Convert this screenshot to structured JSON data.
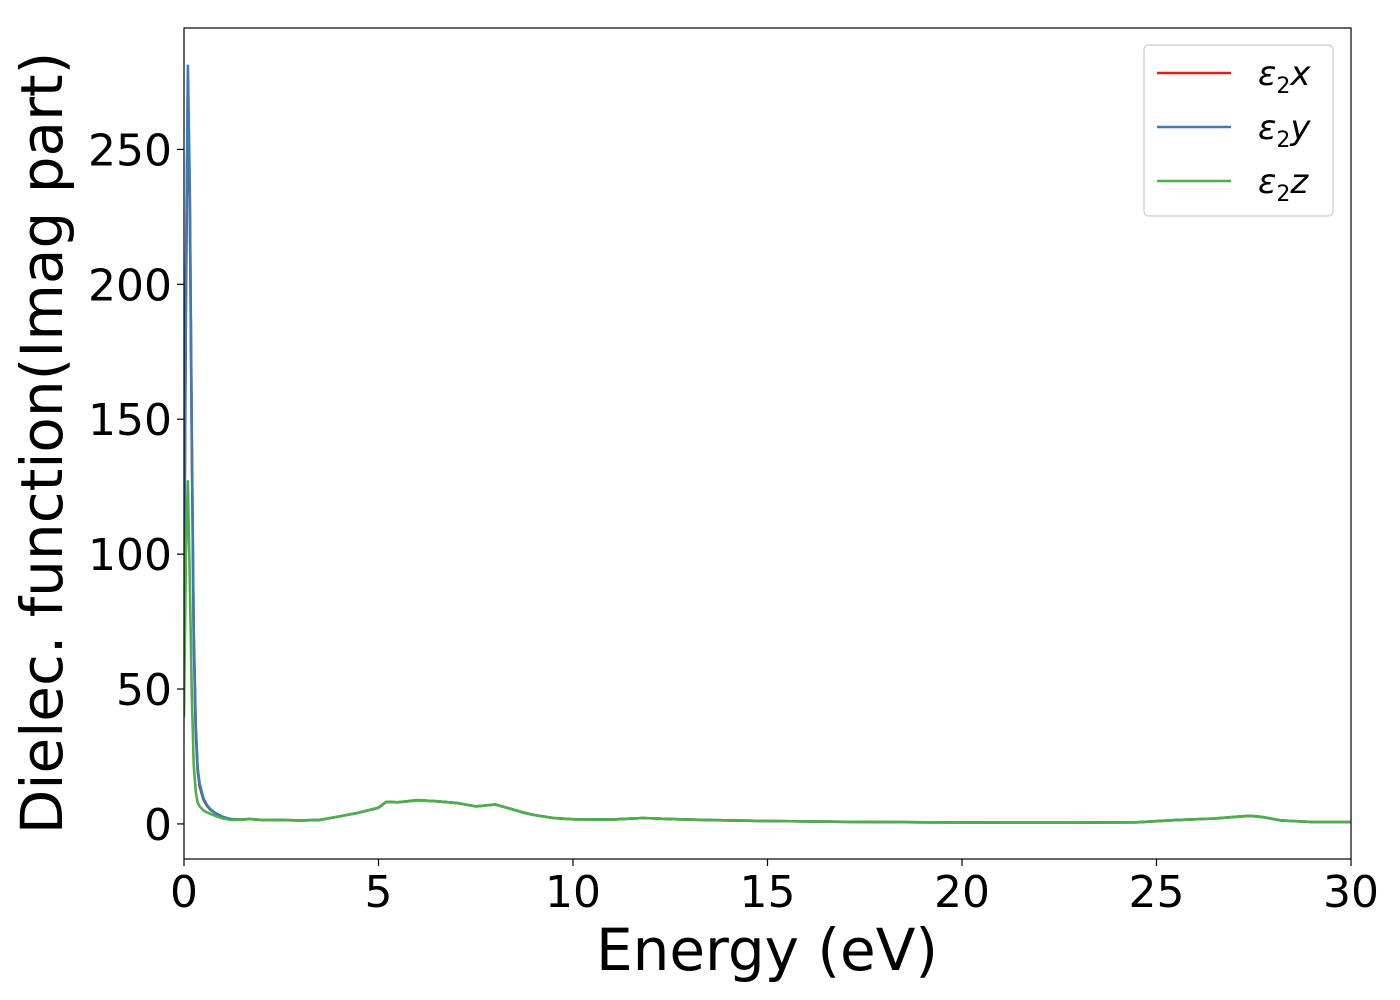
{
  "chart_data": {
    "type": "line",
    "xlabel": "Energy (eV)",
    "ylabel": "Dielec. function(Imag part)",
    "xlim": [
      0,
      30
    ],
    "ylim": [
      -13,
      295
    ],
    "xticks": [
      0,
      5,
      10,
      15,
      20,
      25,
      30
    ],
    "yticks": [
      0,
      50,
      100,
      150,
      200,
      250
    ],
    "grid": false,
    "legend": "top-right",
    "colors": {
      "x": "#e41a1c",
      "y": "#377eb8",
      "z": "#4daf4a"
    },
    "series": [
      {
        "name": "ε2x",
        "sym": "ε",
        "sub": "2",
        "var": "x",
        "color": "#e41a1c",
        "x": [
          0.0,
          0.05,
          0.1,
          0.15,
          0.2,
          0.25,
          0.3,
          0.35,
          0.4,
          0.5,
          0.6,
          0.7,
          0.8,
          1.0,
          1.2,
          1.4,
          1.7,
          2.0,
          2.5,
          3.0,
          3.5,
          4.0,
          4.5,
          5.0,
          5.2,
          5.5,
          6.0,
          6.5,
          7.0,
          7.5,
          8.0,
          8.3,
          8.7,
          9.0,
          9.5,
          10.0,
          11.0,
          11.8,
          12.5,
          13.5,
          15.0,
          17.0,
          19.0,
          21.0,
          23.0,
          24.5,
          25.5,
          26.5,
          27.0,
          27.4,
          27.7,
          28.2,
          29.0,
          30.0
        ],
        "y": [
          75,
          190,
          275,
          230,
          140,
          70,
          35,
          20,
          14,
          9,
          6.5,
          5,
          4,
          2.5,
          1.8,
          1.6,
          1.8,
          1.5,
          1.4,
          1.3,
          1.5,
          2.8,
          4.2,
          6.0,
          8.2,
          8.0,
          8.8,
          8.4,
          7.8,
          6.5,
          7.2,
          6.0,
          4.3,
          3.3,
          2.2,
          1.7,
          1.6,
          2.2,
          1.8,
          1.4,
          1.1,
          0.8,
          0.6,
          0.5,
          0.5,
          0.6,
          1.4,
          2.0,
          2.6,
          3.0,
          2.6,
          1.3,
          0.7,
          0.7
        ]
      },
      {
        "name": "ε2y",
        "sym": "ε",
        "sub": "2",
        "var": "y",
        "color": "#377eb8",
        "x": [
          0.0,
          0.05,
          0.1,
          0.15,
          0.2,
          0.25,
          0.3,
          0.35,
          0.4,
          0.5,
          0.6,
          0.7,
          0.8,
          1.0,
          1.2,
          1.4,
          1.7,
          2.0,
          2.5,
          3.0,
          3.5,
          4.0,
          4.5,
          5.0,
          5.2,
          5.5,
          6.0,
          6.5,
          7.0,
          7.5,
          8.0,
          8.3,
          8.7,
          9.0,
          9.5,
          10.0,
          11.0,
          11.8,
          12.5,
          13.5,
          15.0,
          17.0,
          19.0,
          21.0,
          23.0,
          24.5,
          25.5,
          26.5,
          27.0,
          27.4,
          27.7,
          28.2,
          29.0,
          30.0
        ],
        "y": [
          80,
          200,
          281,
          235,
          145,
          72,
          37,
          21,
          15,
          9.5,
          6.8,
          5.2,
          4.1,
          2.6,
          1.8,
          1.6,
          1.8,
          1.5,
          1.4,
          1.3,
          1.5,
          2.8,
          4.2,
          6.0,
          8.2,
          8.0,
          8.8,
          8.4,
          7.8,
          6.5,
          7.2,
          6.0,
          4.3,
          3.3,
          2.2,
          1.7,
          1.6,
          2.2,
          1.8,
          1.4,
          1.1,
          0.8,
          0.6,
          0.5,
          0.5,
          0.6,
          1.4,
          2.0,
          2.6,
          3.0,
          2.6,
          1.3,
          0.7,
          0.7
        ]
      },
      {
        "name": "ε2z",
        "sym": "ε",
        "sub": "2",
        "var": "z",
        "color": "#4daf4a",
        "x": [
          0.0,
          0.05,
          0.1,
          0.15,
          0.2,
          0.25,
          0.3,
          0.35,
          0.4,
          0.5,
          0.6,
          0.7,
          0.8,
          1.0,
          1.2,
          1.4,
          1.7,
          2.0,
          2.5,
          3.0,
          3.5,
          4.0,
          4.5,
          5.0,
          5.2,
          5.5,
          6.0,
          6.5,
          7.0,
          7.5,
          8.0,
          8.3,
          8.7,
          9.0,
          9.5,
          10.0,
          11.0,
          11.8,
          12.5,
          13.5,
          15.0,
          17.0,
          19.0,
          21.0,
          23.0,
          24.5,
          25.5,
          26.5,
          27.0,
          27.4,
          27.7,
          28.2,
          29.0,
          30.0
        ],
        "y": [
          40,
          100,
          127,
          90,
          48,
          22,
          12,
          8,
          6.5,
          5,
          4.2,
          3.6,
          3.0,
          2.0,
          1.5,
          1.5,
          1.8,
          1.5,
          1.4,
          1.3,
          1.5,
          2.8,
          4.2,
          6.0,
          8.2,
          8.0,
          8.8,
          8.4,
          7.8,
          6.5,
          7.2,
          6.0,
          4.3,
          3.3,
          2.2,
          1.7,
          1.6,
          2.2,
          1.8,
          1.4,
          1.1,
          0.8,
          0.6,
          0.5,
          0.5,
          0.6,
          1.4,
          2.0,
          2.6,
          3.0,
          2.6,
          1.3,
          0.7,
          0.7
        ]
      }
    ]
  }
}
